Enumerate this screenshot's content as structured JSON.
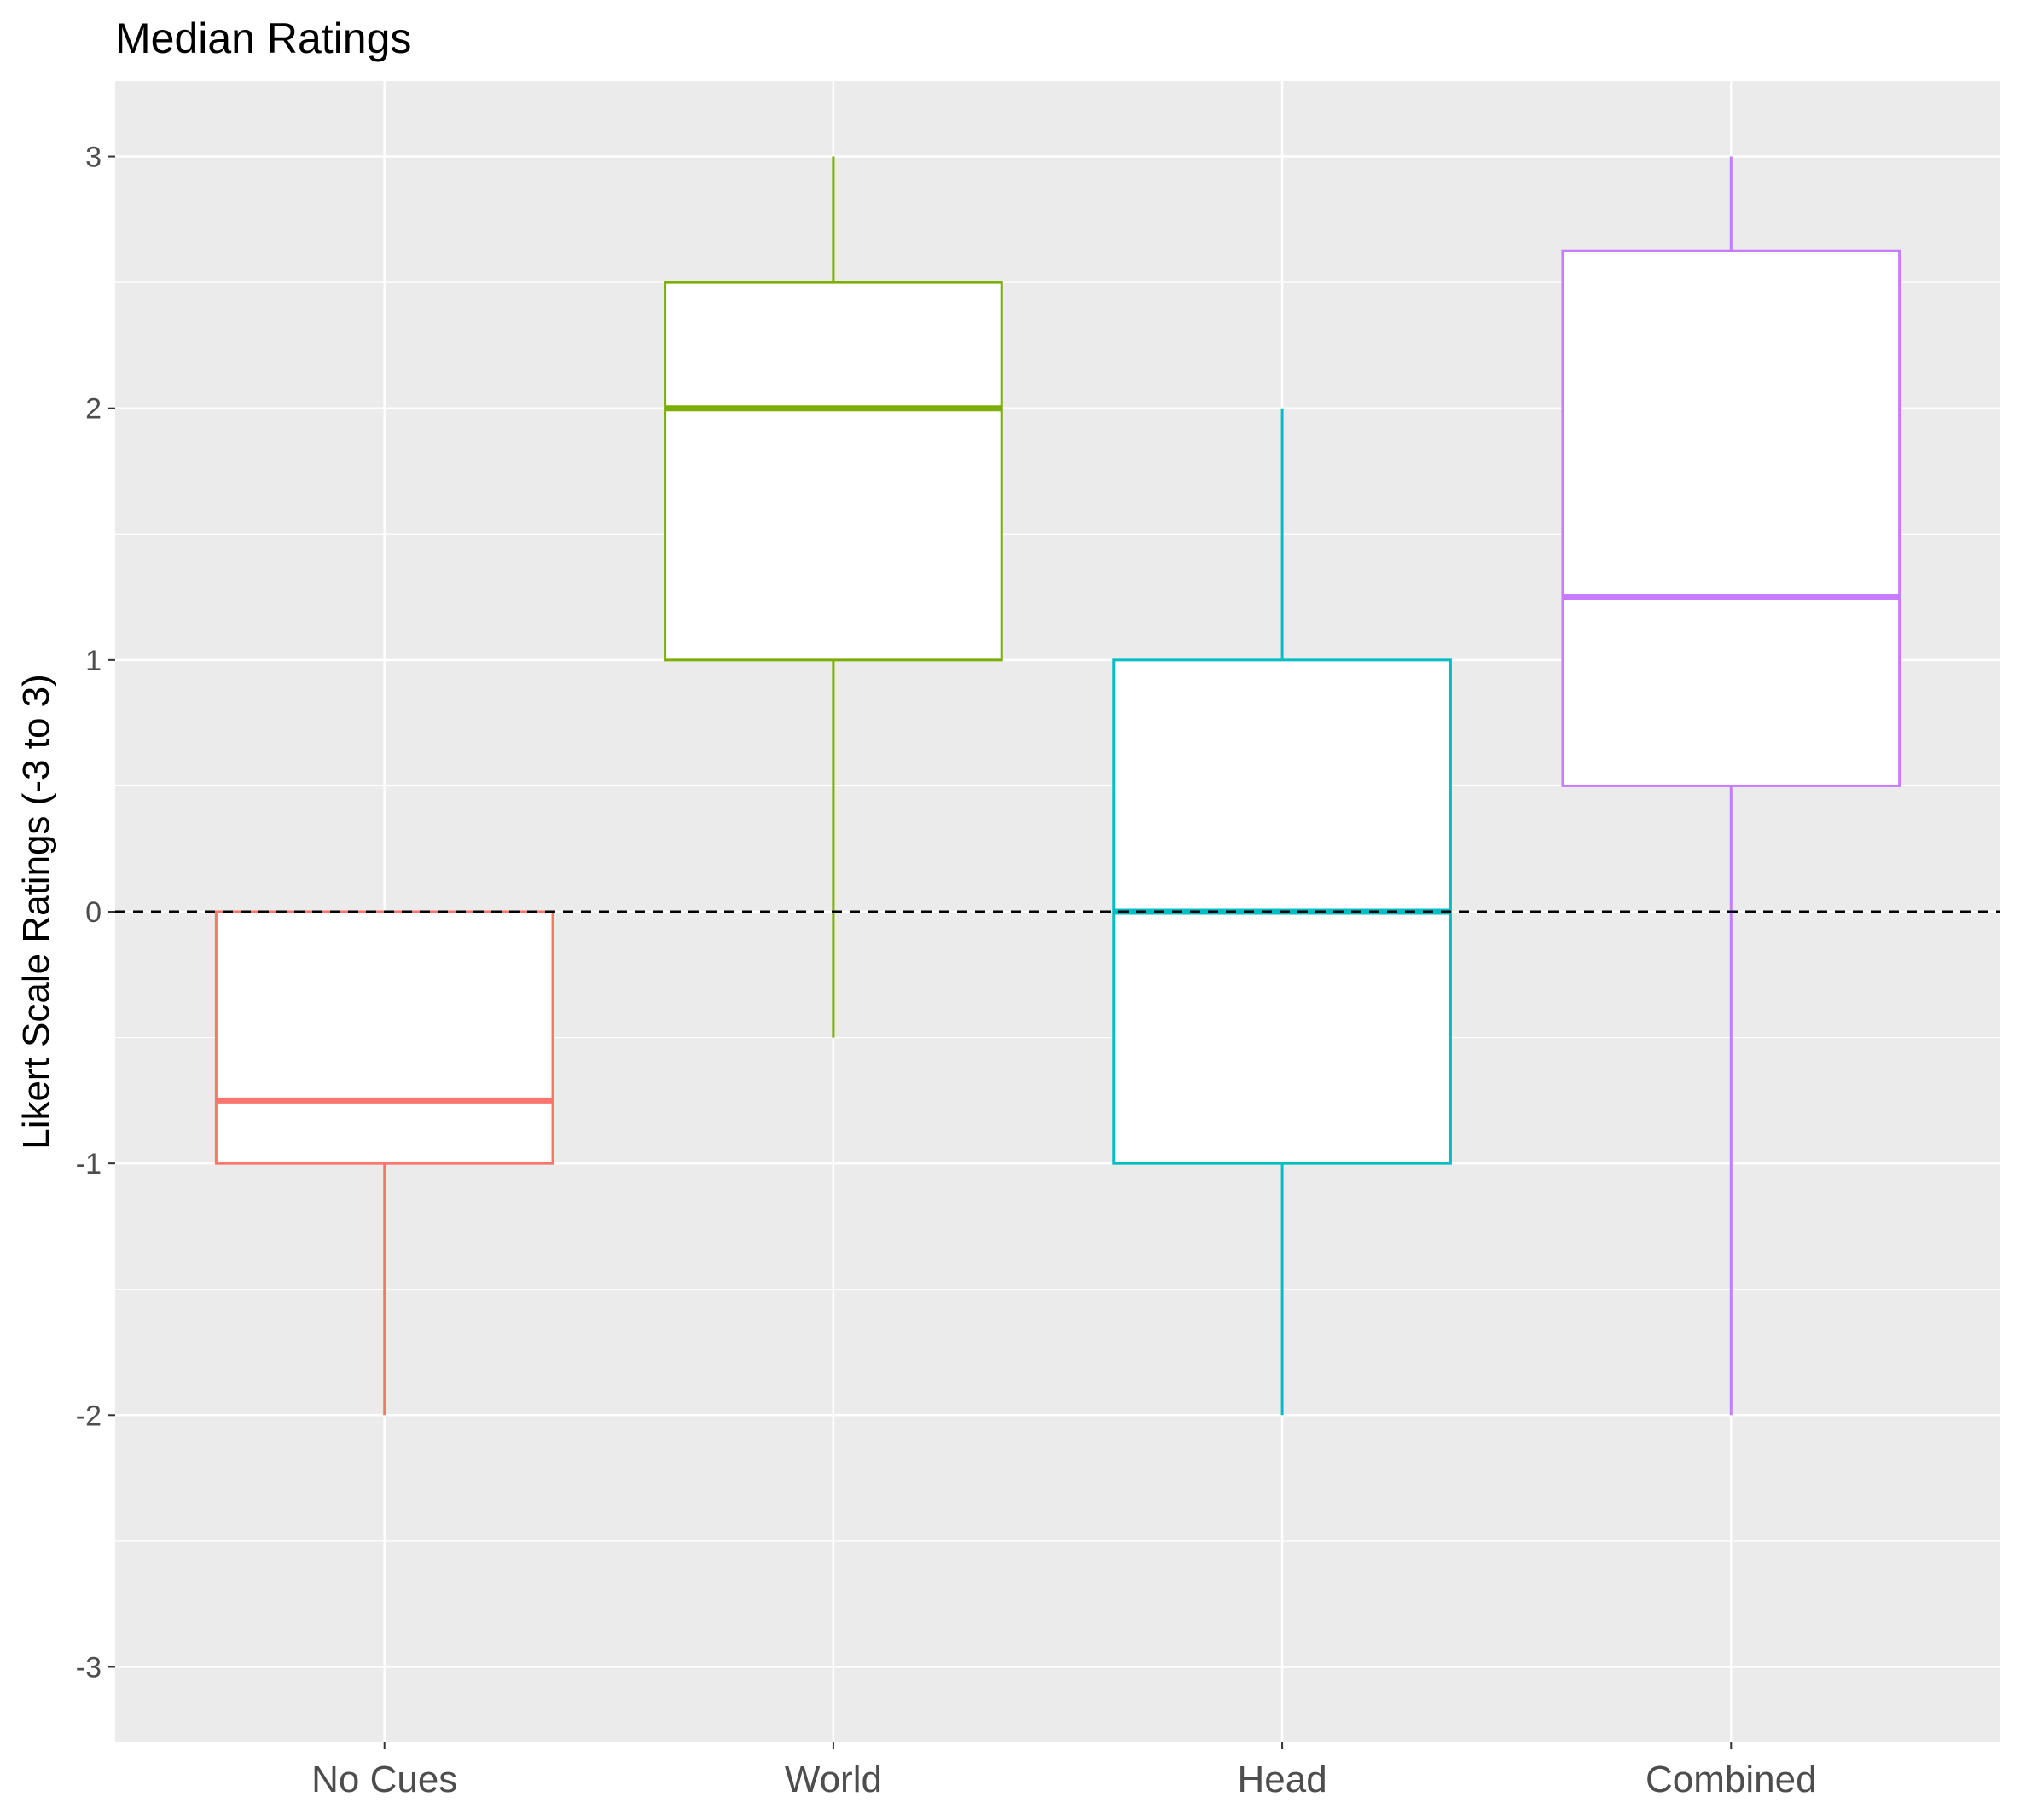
{
  "chart_data": {
    "type": "boxplot",
    "title": "Median Ratings",
    "xlabel": "",
    "ylabel": "Likert Scale Ratings (-3 to 3)",
    "ylim": [
      -3.3,
      3.3
    ],
    "yticks": [
      3,
      2,
      1,
      0,
      -1,
      -2,
      -3
    ],
    "ytick_labels": [
      "3",
      "2",
      "1",
      "0",
      "-1",
      "-2",
      "-3"
    ],
    "reference_line": {
      "y": 0,
      "style": "dashed",
      "color": "#000000"
    },
    "grid": true,
    "legend": "none",
    "categories": [
      "No Cues",
      "World",
      "Head",
      "Combined"
    ],
    "boxes": [
      {
        "category": "No Cues",
        "min": -2,
        "q1": -1,
        "median": -0.75,
        "q3": 0,
        "max": 0,
        "color": "#F8766D"
      },
      {
        "category": "World",
        "min": -0.5,
        "q1": 1,
        "median": 2,
        "q3": 2.5,
        "max": 3,
        "color": "#7CAE00"
      },
      {
        "category": "Head",
        "min": -2,
        "q1": -1,
        "median": 0,
        "q3": 1,
        "max": 2,
        "color": "#00BFC4"
      },
      {
        "category": "Combined",
        "min": -2,
        "q1": 0.5,
        "median": 1.25,
        "q3": 2.625,
        "max": 3,
        "color": "#C77CFF"
      }
    ]
  }
}
